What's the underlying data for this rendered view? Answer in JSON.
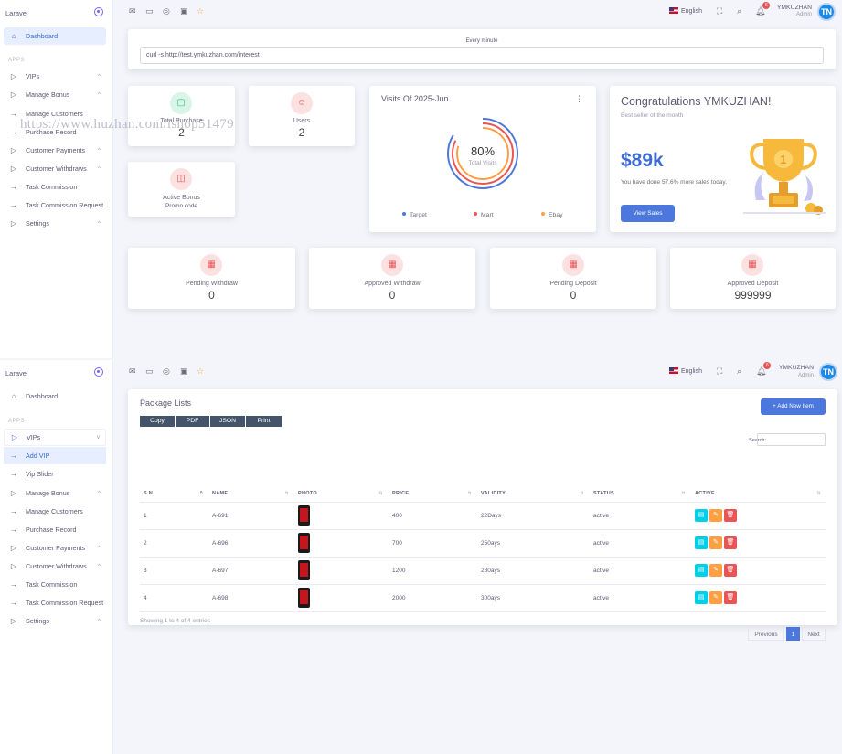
{
  "brand": {
    "name": "Laravel"
  },
  "topbar": {
    "language": "English",
    "notification_count": "6",
    "user_name": "YMKUZHAN",
    "user_role": "Admin",
    "avatar_text": "TN"
  },
  "sidebar1": {
    "dashboard": "Dashboard",
    "apps_header": "APPS",
    "items": [
      "VIPs",
      "Manage Bonus",
      "Manage Customers",
      "Purchase Record",
      "Customer Payments",
      "Customer Withdraws",
      "Task Commission",
      "Task Commission Request",
      "Settings"
    ]
  },
  "sidebar2": {
    "dashboard": "Dashboard",
    "apps_header": "APPS",
    "items": [
      "VIPs",
      "Add VIP",
      "Vip Slider",
      "Manage Bonus",
      "Manage Customers",
      "Purchase Record",
      "Customer Payments",
      "Customer Withdraws",
      "Task Commission",
      "Task Commission Request",
      "Settings"
    ]
  },
  "cron": {
    "label": "Every minute",
    "command": "curl -s http://test.ymkuzhan.com/interest"
  },
  "stats": {
    "total_purchase": {
      "label": "Total Purchase",
      "value": "2"
    },
    "users": {
      "label": "Users",
      "value": "2"
    },
    "active_bonus": {
      "label": "Active Bonus",
      "sub": "Promo code"
    },
    "pending_withdraw": {
      "label": "Pending Withdraw",
      "value": "0"
    },
    "approved_withdraw": {
      "label": "Approved Withdraw",
      "value": "0"
    },
    "pending_deposit": {
      "label": "Pending Deposit",
      "value": "0"
    },
    "approved_deposit": {
      "label": "Approved Deposit",
      "value": "999999"
    }
  },
  "watermark": "https://www.huzhan.com/ishop51479",
  "visits": {
    "title": "Visits Of 2025-Jun",
    "percent": "80%",
    "percent_label": "Total Visits",
    "legend": [
      "Target",
      "Mart",
      "Ebay"
    ],
    "colors": [
      "#4c78dd",
      "#ea5455",
      "#ff9f43"
    ]
  },
  "congrats": {
    "title": "Congratulations YMKUZHAN!",
    "subtitle": "Best seller of the month",
    "amount": "$89k",
    "note": "You have done 57.6% more sales today.",
    "button": "View Sales"
  },
  "packages": {
    "title": "Package Lists",
    "export_buttons": [
      "Copy",
      "PDF",
      "JSON",
      "Print"
    ],
    "add_button": "Add New Item",
    "search_label": "Search:",
    "columns": [
      "S.N",
      "NAME",
      "PHOTO",
      "PRICE",
      "VALIDITY",
      "STATUS",
      "ACTIVE"
    ],
    "rows": [
      {
        "sn": "1",
        "name": "A-691",
        "price": "400",
        "validity": "22Days",
        "status": "active"
      },
      {
        "sn": "2",
        "name": "A-696",
        "price": "700",
        "validity": "250ays",
        "status": "active"
      },
      {
        "sn": "3",
        "name": "A-697",
        "price": "1200",
        "validity": "280ays",
        "status": "active"
      },
      {
        "sn": "4",
        "name": "A-698",
        "price": "2000",
        "validity": "300ays",
        "status": "active"
      }
    ],
    "showing": "Showing 1 to 4 of 4 entries",
    "pagination": {
      "previous": "Previous",
      "current": "1",
      "next": "Next"
    }
  }
}
